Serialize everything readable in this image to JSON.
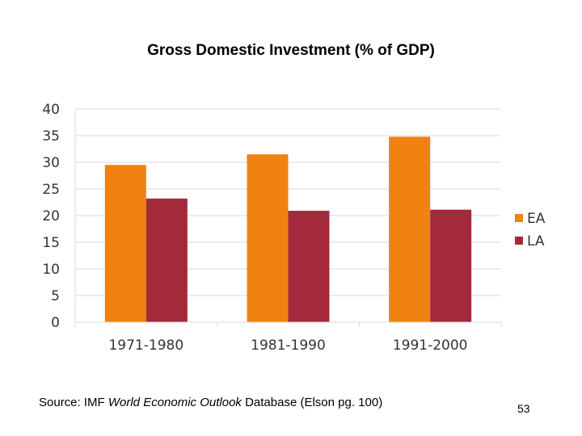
{
  "chart_data": {
    "type": "bar",
    "title": "Gross Domestic Investment (% of GDP)",
    "categories": [
      "1971-1980",
      "1981-1990",
      "1991-2000"
    ],
    "series": [
      {
        "name": "EA",
        "values": [
          29.5,
          31.5,
          34.8
        ],
        "color": "#f0820f"
      },
      {
        "name": "LA",
        "values": [
          23.2,
          20.9,
          21.1
        ],
        "color": "#a4293b"
      }
    ],
    "ylim": [
      0,
      40
    ],
    "yticks": [
      0,
      5,
      10,
      15,
      20,
      25,
      30,
      35,
      40
    ],
    "grid": true,
    "legend_position": "right"
  },
  "footer": {
    "source_prefix": "Source: IMF ",
    "source_italic": "World Economic Outlook",
    "source_suffix": " Database (Elson pg. 100)",
    "page_number": "53"
  }
}
